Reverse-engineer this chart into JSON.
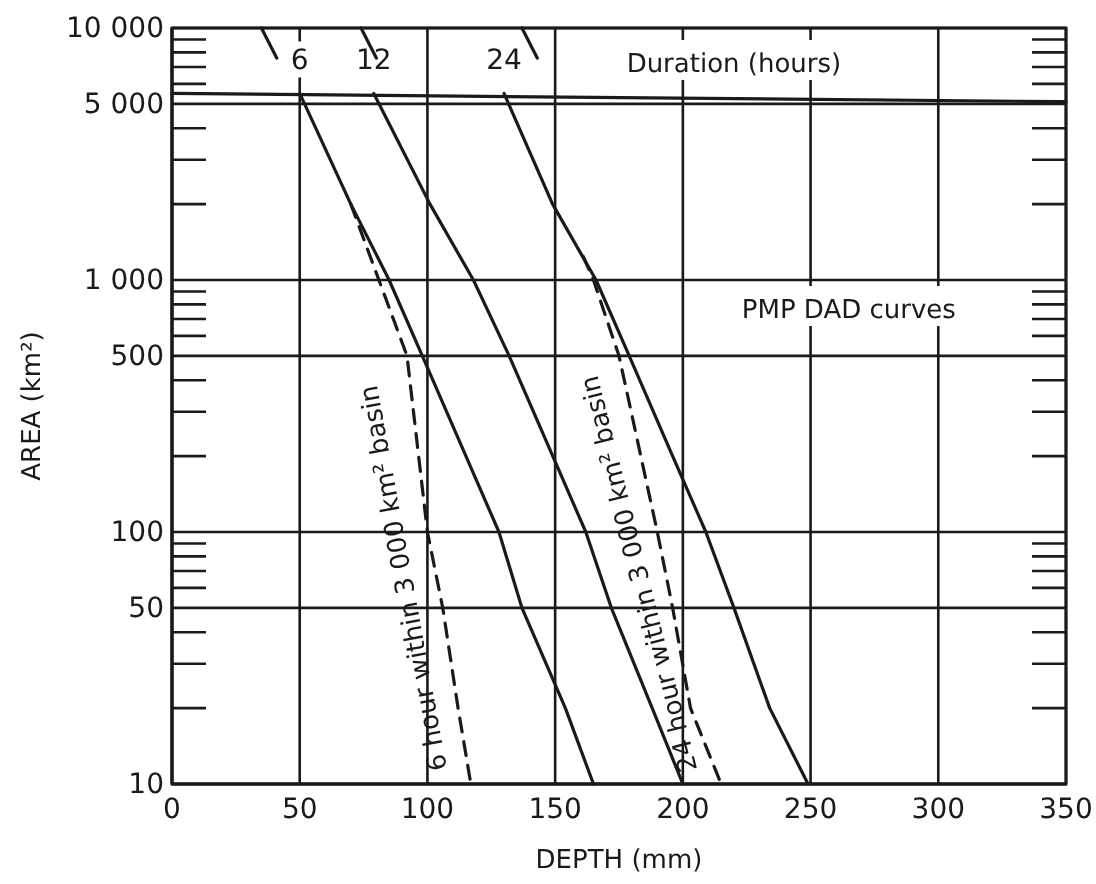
{
  "chart_data": {
    "type": "line",
    "xlabel": "DEPTH (mm)",
    "ylabel": "AREA (km²)",
    "log": "y",
    "grid": true,
    "xlim": [
      0,
      350
    ],
    "xticks": [
      0,
      50,
      100,
      150,
      200,
      250,
      300,
      350
    ],
    "ylim": [
      10,
      10000
    ],
    "yticks": [
      10,
      50,
      100,
      500,
      {
        "value": 1000,
        "label": "1 000"
      },
      {
        "value": 5000,
        "label": "5 000"
      },
      {
        "value": 10000,
        "label": "10 000"
      }
    ],
    "series": [
      {
        "name": "6",
        "color": "#1a1a1a",
        "line_style": "solid",
        "x": [
          50,
          70,
          85,
          98,
          128,
          137,
          154,
          165
        ],
        "values": [
          5500,
          2000,
          1000,
          500,
          100,
          50,
          20,
          10
        ]
      },
      {
        "name": "12",
        "color": "#1a1a1a",
        "line_style": "solid",
        "x": [
          79,
          101,
          118,
          132,
          162,
          172,
          188,
          200
        ],
        "values": [
          5500,
          2000,
          1000,
          500,
          100,
          50,
          20,
          10
        ]
      },
      {
        "name": "24",
        "color": "#1a1a1a",
        "line_style": "solid",
        "x": [
          130,
          149,
          166,
          179,
          196,
          209,
          220,
          234,
          249
        ],
        "values": [
          5500,
          2000,
          1000,
          500,
          200,
          100,
          50,
          20,
          10
        ]
      },
      {
        "name": "6 hour within 3 000 km² basin",
        "color": "#1a1a1a",
        "line_style": "dashed",
        "x": [
          70,
          81,
          92,
          100,
          106,
          112,
          117
        ],
        "values": [
          2000,
          1000,
          500,
          100,
          50,
          20,
          10
        ]
      },
      {
        "name": "24 hour within 3 000 km² basin",
        "color": "#1a1a1a",
        "line_style": "dashed",
        "x": [
          161,
          165,
          175,
          190,
          196,
          203,
          215
        ],
        "values": [
          1240,
          1000,
          500,
          100,
          50,
          20,
          10
        ]
      },
      {
        "color": "#1a1a1a",
        "line_style": "solid",
        "x": [
          0,
          350
        ],
        "values": [
          5500,
          5100
        ]
      },
      {
        "color": "#1a1a1a",
        "line_style": "solid",
        "x": [
          35,
          41,
          null,
          74,
          80,
          null,
          137,
          143
        ],
        "values": [
          10000,
          7600,
          null,
          10000,
          7600,
          null,
          10000,
          7600
        ]
      }
    ],
    "annotations": [
      "Duration (hours)",
      "PMP DAD curves"
    ]
  }
}
